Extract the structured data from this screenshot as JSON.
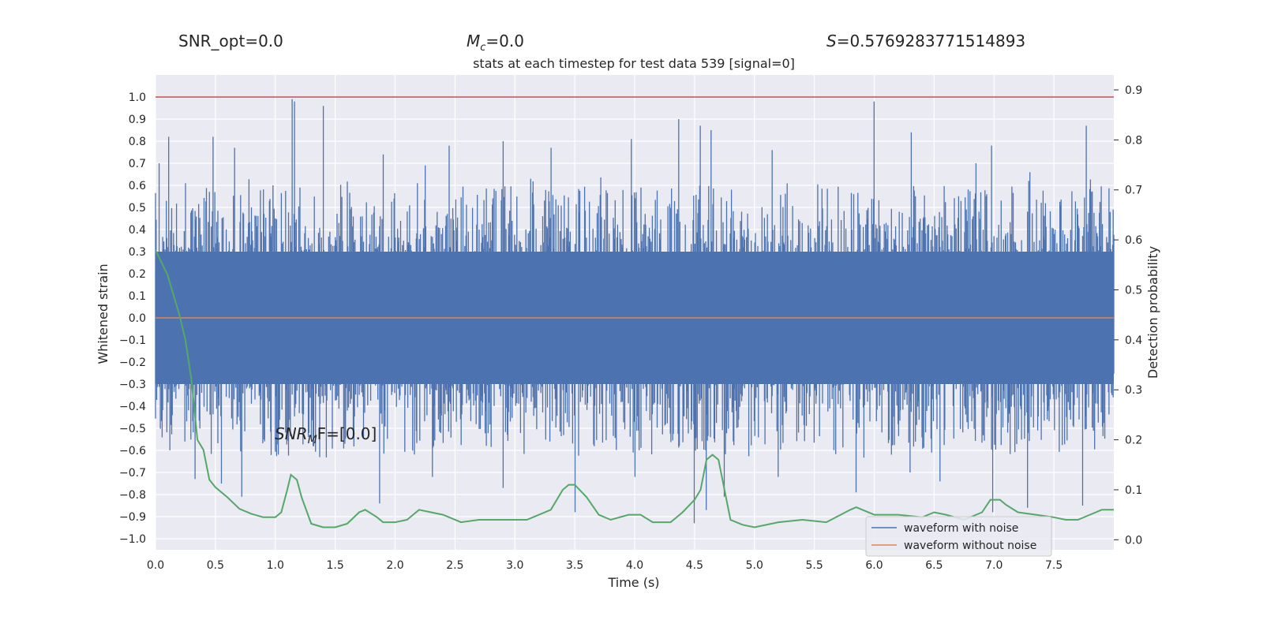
{
  "header": {
    "snr_opt": "SNR_opt=0.0",
    "mc_symbol": "M",
    "mc_sub": "c",
    "mc_value": "=0.0",
    "s_symbol": "S",
    "s_value": "=0.5769283771514893"
  },
  "chart_data": {
    "type": "line",
    "title": "stats at each timestep for test data 539 [signal=0]",
    "xlabel": "Time (s)",
    "ylabel": "Whitened strain",
    "y2label": "Detection probability",
    "xlim": [
      0.0,
      8.0
    ],
    "ylim": [
      -1.05,
      1.1
    ],
    "y2lim": [
      -0.02,
      0.93
    ],
    "x_ticks": [
      "0.0",
      "0.5",
      "1.0",
      "1.5",
      "2.0",
      "2.5",
      "3.0",
      "3.5",
      "4.0",
      "4.5",
      "5.0",
      "5.5",
      "6.0",
      "6.5",
      "7.0",
      "7.5"
    ],
    "y_ticks": [
      "1.0",
      "0.9",
      "0.8",
      "0.7",
      "0.6",
      "0.5",
      "0.4",
      "0.3",
      "0.2",
      "0.1",
      "0.0",
      "−0.1",
      "−0.2",
      "−0.3",
      "−0.4",
      "−0.5",
      "−0.6",
      "−0.7",
      "−0.8",
      "−0.9",
      "−1.0"
    ],
    "y2_ticks": [
      "0.9",
      "0.8",
      "0.7",
      "0.6",
      "0.5",
      "0.4",
      "0.3",
      "0.2",
      "0.1",
      "0.0"
    ],
    "annotation": {
      "base": "SNR",
      "sub": "M",
      "rest": "F=[0.0]"
    },
    "threshold": 1.0,
    "grid": true,
    "legend_placement": "lower-right",
    "colors": {
      "noise": "#4c72b0",
      "clean": "#dd8452",
      "prob": "#55a868",
      "threshold": "#c44e52",
      "background": "#eaeaf2"
    },
    "series": [
      {
        "name": "waveform with noise",
        "axis": "left",
        "note": "dense noise samples, amplitude mostly within ±0.45 with spikes to ±0.99",
        "peaks": [
          [
            0.03,
            0.7
          ],
          [
            0.11,
            0.82
          ],
          [
            0.25,
            0.61
          ],
          [
            0.48,
            0.82
          ],
          [
            0.66,
            0.77
          ],
          [
            0.98,
            0.6
          ],
          [
            1.14,
            0.99
          ],
          [
            1.16,
            0.98
          ],
          [
            1.4,
            0.96
          ],
          [
            1.9,
            0.74
          ],
          [
            2.25,
            0.69
          ],
          [
            2.45,
            0.78
          ],
          [
            2.9,
            0.8
          ],
          [
            3.3,
            0.77
          ],
          [
            3.97,
            0.81
          ],
          [
            4.37,
            0.9
          ],
          [
            4.55,
            0.87
          ],
          [
            4.64,
            0.85
          ],
          [
            5.15,
            0.76
          ],
          [
            6.0,
            0.98
          ],
          [
            6.31,
            0.84
          ],
          [
            6.85,
            0.7
          ],
          [
            6.98,
            0.78
          ],
          [
            7.3,
            0.66
          ],
          [
            7.77,
            0.87
          ]
        ],
        "troughs": [
          [
            0.12,
            -0.6
          ],
          [
            0.33,
            -0.73
          ],
          [
            0.55,
            -0.75
          ],
          [
            0.72,
            -0.81
          ],
          [
            1.58,
            -0.57
          ],
          [
            1.87,
            -0.84
          ],
          [
            2.31,
            -0.72
          ],
          [
            2.9,
            -0.77
          ],
          [
            3.5,
            -0.88
          ],
          [
            4.0,
            -0.72
          ],
          [
            4.5,
            -0.93
          ],
          [
            4.6,
            -0.87
          ],
          [
            4.75,
            -0.81
          ],
          [
            5.2,
            -0.72
          ],
          [
            5.85,
            -0.79
          ],
          [
            6.3,
            -0.7
          ],
          [
            6.55,
            -0.74
          ],
          [
            6.99,
            -0.88
          ],
          [
            7.28,
            -0.86
          ],
          [
            7.74,
            -0.85
          ]
        ]
      },
      {
        "name": "waveform without noise",
        "axis": "left",
        "points": [
          [
            0.0,
            0.0
          ],
          [
            8.0,
            0.0
          ]
        ]
      },
      {
        "name": "Detection probability",
        "axis": "right",
        "points": [
          [
            0.0,
            0.58
          ],
          [
            0.1,
            0.53
          ],
          [
            0.2,
            0.45
          ],
          [
            0.25,
            0.4
          ],
          [
            0.3,
            0.32
          ],
          [
            0.35,
            0.2
          ],
          [
            0.4,
            0.18
          ],
          [
            0.45,
            0.12
          ],
          [
            0.5,
            0.105
          ],
          [
            0.6,
            0.085
          ],
          [
            0.7,
            0.062
          ],
          [
            0.8,
            0.052
          ],
          [
            0.9,
            0.045
          ],
          [
            1.0,
            0.045
          ],
          [
            1.05,
            0.055
          ],
          [
            1.1,
            0.1
          ],
          [
            1.13,
            0.13
          ],
          [
            1.18,
            0.12
          ],
          [
            1.22,
            0.085
          ],
          [
            1.3,
            0.032
          ],
          [
            1.4,
            0.025
          ],
          [
            1.5,
            0.025
          ],
          [
            1.6,
            0.032
          ],
          [
            1.7,
            0.055
          ],
          [
            1.75,
            0.06
          ],
          [
            1.85,
            0.045
          ],
          [
            1.9,
            0.035
          ],
          [
            2.0,
            0.035
          ],
          [
            2.1,
            0.04
          ],
          [
            2.2,
            0.06
          ],
          [
            2.3,
            0.055
          ],
          [
            2.4,
            0.05
          ],
          [
            2.55,
            0.035
          ],
          [
            2.7,
            0.04
          ],
          [
            2.9,
            0.04
          ],
          [
            3.1,
            0.04
          ],
          [
            3.3,
            0.06
          ],
          [
            3.4,
            0.1
          ],
          [
            3.45,
            0.11
          ],
          [
            3.5,
            0.11
          ],
          [
            3.6,
            0.085
          ],
          [
            3.7,
            0.05
          ],
          [
            3.8,
            0.04
          ],
          [
            3.95,
            0.05
          ],
          [
            4.05,
            0.05
          ],
          [
            4.15,
            0.035
          ],
          [
            4.3,
            0.035
          ],
          [
            4.4,
            0.055
          ],
          [
            4.5,
            0.08
          ],
          [
            4.55,
            0.1
          ],
          [
            4.6,
            0.16
          ],
          [
            4.65,
            0.17
          ],
          [
            4.7,
            0.16
          ],
          [
            4.8,
            0.04
          ],
          [
            4.9,
            0.03
          ],
          [
            5.0,
            0.025
          ],
          [
            5.2,
            0.035
          ],
          [
            5.4,
            0.04
          ],
          [
            5.6,
            0.035
          ],
          [
            5.8,
            0.06
          ],
          [
            5.85,
            0.065
          ],
          [
            6.0,
            0.05
          ],
          [
            6.2,
            0.05
          ],
          [
            6.4,
            0.045
          ],
          [
            6.5,
            0.055
          ],
          [
            6.6,
            0.05
          ],
          [
            6.75,
            0.04
          ],
          [
            6.9,
            0.055
          ],
          [
            6.97,
            0.08
          ],
          [
            7.05,
            0.08
          ],
          [
            7.1,
            0.07
          ],
          [
            7.2,
            0.055
          ],
          [
            7.35,
            0.05
          ],
          [
            7.5,
            0.045
          ],
          [
            7.6,
            0.04
          ],
          [
            7.7,
            0.04
          ],
          [
            7.85,
            0.055
          ],
          [
            7.9,
            0.06
          ],
          [
            8.0,
            0.06
          ]
        ]
      }
    ]
  }
}
